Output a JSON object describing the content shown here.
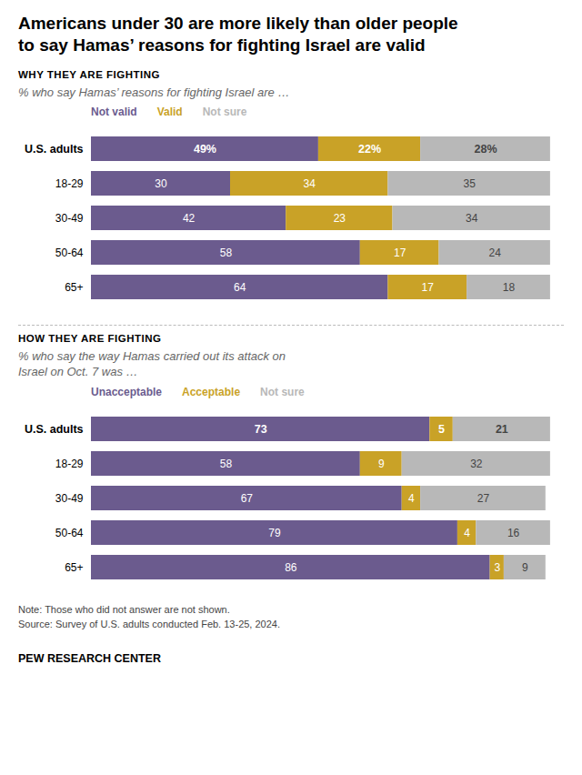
{
  "title": "Americans under 30 are more likely than older people\nto say Hamas’ reasons for fighting Israel are valid",
  "chart_data": [
    {
      "type": "bar",
      "orientation": "horizontal",
      "stacked": true,
      "data_labels": true,
      "tick_labels": "y",
      "legend": "top",
      "title": "WHY THEY ARE FIGHTING",
      "subtitle": "% who say Hamas’ reasons for fighting Israel are …",
      "categories": [
        "U.S. adults",
        "18-29",
        "30-49",
        "50-64",
        "65+"
      ],
      "xlim": [
        0,
        100
      ],
      "series": [
        {
          "name": "Not valid",
          "color": "#6b5b8e",
          "values": [
            49,
            30,
            42,
            58,
            64
          ],
          "value_labels": [
            "49%",
            "30",
            "42",
            "58",
            "64"
          ]
        },
        {
          "name": "Valid",
          "color": "#c9a227",
          "values": [
            22,
            34,
            23,
            17,
            17
          ],
          "value_labels": [
            "22%",
            "34",
            "23",
            "17",
            "17"
          ]
        },
        {
          "name": "Not sure",
          "color": "#b8b8b8",
          "values": [
            28,
            35,
            34,
            24,
            18
          ],
          "value_labels": [
            "28%",
            "35",
            "34",
            "24",
            "18"
          ]
        }
      ]
    },
    {
      "type": "bar",
      "orientation": "horizontal",
      "stacked": true,
      "data_labels": true,
      "tick_labels": "y",
      "legend": "top",
      "title": "HOW THEY ARE FIGHTING",
      "subtitle": "% who say the way Hamas carried out its attack on\nIsrael on Oct. 7 was …",
      "categories": [
        "U.S. adults",
        "18-29",
        "30-49",
        "50-64",
        "65+"
      ],
      "xlim": [
        0,
        100
      ],
      "series": [
        {
          "name": "Unacceptable",
          "color": "#6b5b8e",
          "values": [
            73,
            58,
            67,
            79,
            86
          ]
        },
        {
          "name": "Acceptable",
          "color": "#c9a227",
          "values": [
            5,
            9,
            4,
            4,
            3
          ]
        },
        {
          "name": "Not sure",
          "color": "#b8b8b8",
          "values": [
            21,
            32,
            27,
            16,
            9
          ]
        }
      ]
    }
  ],
  "annotations": [
    "Note: Those who did not answer are not shown.",
    "Source: Survey of U.S. adults conducted Feb. 13-25, 2024.",
    "PEW RESEARCH CENTER"
  ]
}
